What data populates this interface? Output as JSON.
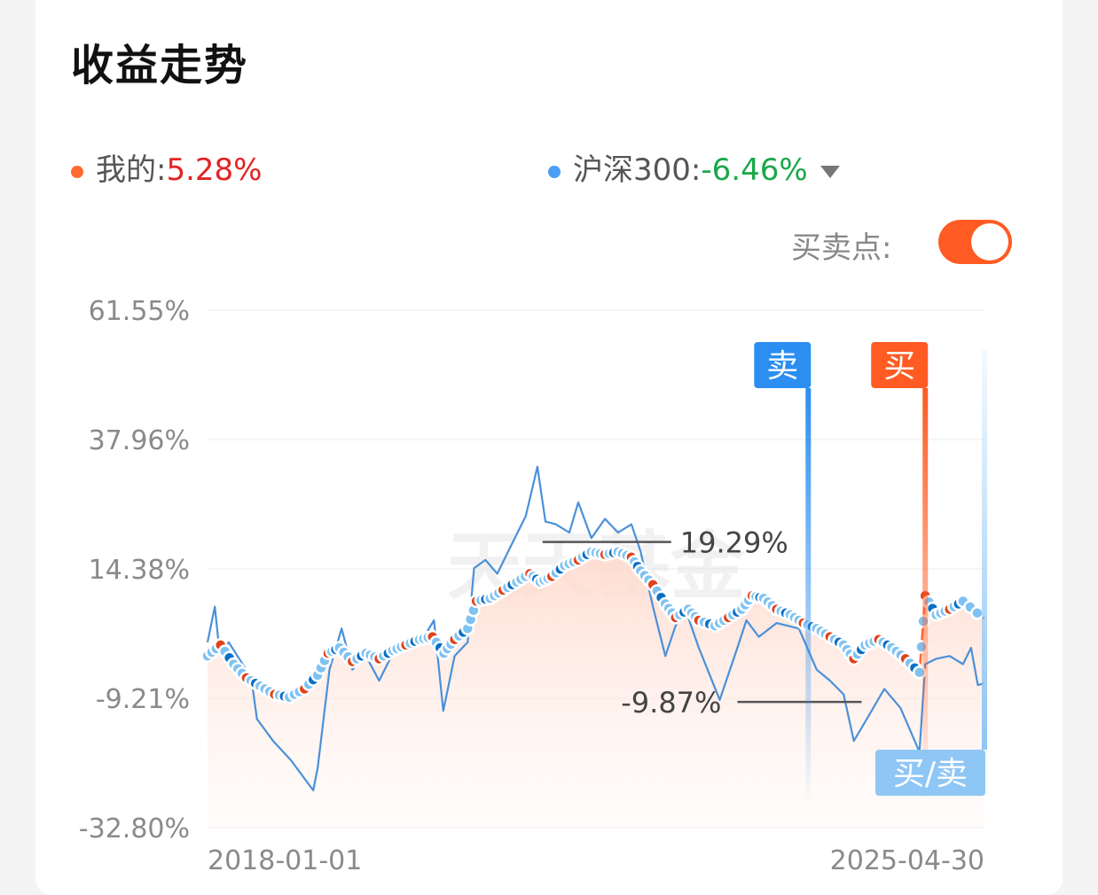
{
  "header": {
    "title": "收益走势"
  },
  "legend": {
    "mine": {
      "label": "我的:",
      "value": "5.28%",
      "dot_color": "#ff6a33",
      "value_color": "#e02424"
    },
    "benchmark": {
      "label": "沪深300:",
      "value": "-6.46%",
      "dot_color": "#4a9ff5",
      "value_color": "#1aa84a",
      "dropdown_icon": "triangle-down-icon"
    }
  },
  "buy_sell_points": {
    "label": "买卖点:",
    "enabled": true,
    "accent": "#ff5b22"
  },
  "chart_data": {
    "type": "line",
    "x_range": [
      "2018-01-01",
      "2025-04-30"
    ],
    "ylim": [
      -32.8,
      61.55
    ],
    "y_ticks": [
      "61.55%",
      "37.96%",
      "14.38%",
      "-9.21%",
      "-32.80%"
    ],
    "x_ticks": [
      "2018-01-01",
      "2025-04-30"
    ],
    "grid": true,
    "watermark": "天天基金",
    "series": [
      {
        "name": "我的",
        "color": "#ff6a33",
        "points": [
          [
            "2018-01-01",
            -1.5
          ],
          [
            "2018-02-15",
            0.5
          ],
          [
            "2018-04-01",
            -3.0
          ],
          [
            "2018-05-15",
            -5.5
          ],
          [
            "2018-07-01",
            -7.0
          ],
          [
            "2018-08-20",
            -8.5
          ],
          [
            "2018-10-10",
            -9.0
          ],
          [
            "2018-12-01",
            -7.5
          ],
          [
            "2019-01-15",
            -5.0
          ],
          [
            "2019-02-20",
            -1.0
          ],
          [
            "2019-04-01",
            0.0
          ],
          [
            "2019-05-15",
            -2.5
          ],
          [
            "2019-07-01",
            -1.0
          ],
          [
            "2019-08-15",
            -2.0
          ],
          [
            "2019-10-01",
            -0.5
          ],
          [
            "2019-11-15",
            0.5
          ],
          [
            "2020-01-01",
            1.5
          ],
          [
            "2020-02-15",
            2.0
          ],
          [
            "2020-03-25",
            -1.0
          ],
          [
            "2020-05-01",
            1.5
          ],
          [
            "2020-06-15",
            3.5
          ],
          [
            "2020-07-15",
            8.5
          ],
          [
            "2020-09-01",
            9.0
          ],
          [
            "2020-10-15",
            10.5
          ],
          [
            "2020-12-01",
            12.0
          ],
          [
            "2021-01-15",
            13.5
          ],
          [
            "2021-02-20",
            12.0
          ],
          [
            "2021-04-01",
            13.0
          ],
          [
            "2021-05-15",
            15.0
          ],
          [
            "2021-07-01",
            16.0
          ],
          [
            "2021-08-15",
            17.5
          ],
          [
            "2021-10-01",
            17.0
          ],
          [
            "2021-11-15",
            17.5
          ],
          [
            "2021-12-31",
            16.5
          ],
          [
            "2022-02-01",
            14.0
          ],
          [
            "2022-03-15",
            11.5
          ],
          [
            "2022-04-27",
            8.0
          ],
          [
            "2022-06-01",
            5.5
          ],
          [
            "2022-07-15",
            7.0
          ],
          [
            "2022-08-20",
            5.0
          ],
          [
            "2022-10-15",
            4.0
          ],
          [
            "2022-11-30",
            5.5
          ],
          [
            "2023-01-15",
            7.0
          ],
          [
            "2023-02-20",
            9.5
          ],
          [
            "2023-04-01",
            9.0
          ],
          [
            "2023-05-15",
            7.0
          ],
          [
            "2023-07-01",
            6.0
          ],
          [
            "2023-08-15",
            4.5
          ],
          [
            "2023-09-30",
            3.5
          ],
          [
            "2023-11-15",
            2.0
          ],
          [
            "2024-01-01",
            0.5
          ],
          [
            "2024-02-05",
            -2.0
          ],
          [
            "2024-03-15",
            0.5
          ],
          [
            "2024-05-01",
            1.5
          ],
          [
            "2024-06-15",
            0.0
          ],
          [
            "2024-08-01",
            -2.0
          ],
          [
            "2024-09-18",
            -4.5
          ],
          [
            "2024-10-08",
            9.5
          ],
          [
            "2024-11-15",
            6.0
          ],
          [
            "2024-12-31",
            7.0
          ],
          [
            "2025-02-15",
            8.5
          ],
          [
            "2025-04-30",
            5.28
          ]
        ]
      },
      {
        "name": "沪深300",
        "color": "#4a90d9",
        "points": [
          [
            "2018-01-01",
            1.0
          ],
          [
            "2018-01-26",
            7.5
          ],
          [
            "2018-02-12",
            -1.0
          ],
          [
            "2018-03-15",
            1.0
          ],
          [
            "2018-04-20",
            -2.0
          ],
          [
            "2018-06-01",
            -5.5
          ],
          [
            "2018-06-20",
            -13.0
          ],
          [
            "2018-08-15",
            -17.0
          ],
          [
            "2018-10-15",
            -20.5
          ],
          [
            "2018-12-31",
            -26.0
          ],
          [
            "2019-01-15",
            -22.0
          ],
          [
            "2019-02-25",
            -4.0
          ],
          [
            "2019-04-08",
            3.5
          ],
          [
            "2019-05-15",
            -4.0
          ],
          [
            "2019-07-01",
            -1.5
          ],
          [
            "2019-08-15",
            -6.0
          ],
          [
            "2019-10-01",
            -1.0
          ],
          [
            "2019-12-31",
            0.5
          ],
          [
            "2020-02-20",
            5.0
          ],
          [
            "2020-03-23",
            -11.5
          ],
          [
            "2020-05-01",
            -1.5
          ],
          [
            "2020-06-15",
            1.0
          ],
          [
            "2020-07-07",
            14.5
          ],
          [
            "2020-08-15",
            16.0
          ],
          [
            "2020-09-25",
            13.5
          ],
          [
            "2020-11-15",
            19.0
          ],
          [
            "2021-01-01",
            24.0
          ],
          [
            "2021-02-10",
            33.0
          ],
          [
            "2021-03-10",
            23.0
          ],
          [
            "2021-04-15",
            22.5
          ],
          [
            "2021-05-31",
            21.0
          ],
          [
            "2021-07-01",
            26.5
          ],
          [
            "2021-08-15",
            20.0
          ],
          [
            "2021-10-01",
            23.5
          ],
          [
            "2021-11-15",
            21.0
          ],
          [
            "2021-12-31",
            22.5
          ],
          [
            "2022-02-01",
            17.5
          ],
          [
            "2022-03-15",
            7.5
          ],
          [
            "2022-04-27",
            -1.5
          ],
          [
            "2022-06-01",
            4.0
          ],
          [
            "2022-07-05",
            7.0
          ],
          [
            "2022-08-20",
            0.0
          ],
          [
            "2022-10-31",
            -9.5
          ],
          [
            "2022-12-31",
            0.0
          ],
          [
            "2023-01-31",
            5.0
          ],
          [
            "2023-03-15",
            2.0
          ],
          [
            "2023-05-15",
            4.5
          ],
          [
            "2023-07-31",
            3.5
          ],
          [
            "2023-09-30",
            -4.0
          ],
          [
            "2023-11-15",
            -6.0
          ],
          [
            "2024-01-01",
            -8.5
          ],
          [
            "2024-02-05",
            -17.0
          ],
          [
            "2024-03-15",
            -13.5
          ],
          [
            "2024-05-20",
            -7.5
          ],
          [
            "2024-07-15",
            -11.0
          ],
          [
            "2024-09-18",
            -19.0
          ],
          [
            "2024-10-08",
            -3.0
          ],
          [
            "2024-11-15",
            -2.0
          ],
          [
            "2024-12-31",
            -1.5
          ],
          [
            "2025-02-15",
            -3.0
          ],
          [
            "2025-03-15",
            0.0
          ],
          [
            "2025-04-07",
            -6.8
          ],
          [
            "2025-04-30",
            -6.46
          ]
        ]
      }
    ],
    "annotations": [
      {
        "text": "19.29%",
        "type": "max",
        "date": "2021-08-15",
        "value": 19.29
      },
      {
        "text": "-9.87%",
        "type": "min",
        "date": "2022-10-31",
        "value": -9.87
      }
    ],
    "markers": [
      {
        "text": "卖",
        "date": "2023-09-01",
        "color": "#2b8ef0"
      },
      {
        "text": "买",
        "date": "2024-10-08",
        "color": "#ff5b22"
      },
      {
        "text": "买/卖",
        "date": "2025-04-30",
        "color": "#8ec6f5"
      }
    ]
  }
}
